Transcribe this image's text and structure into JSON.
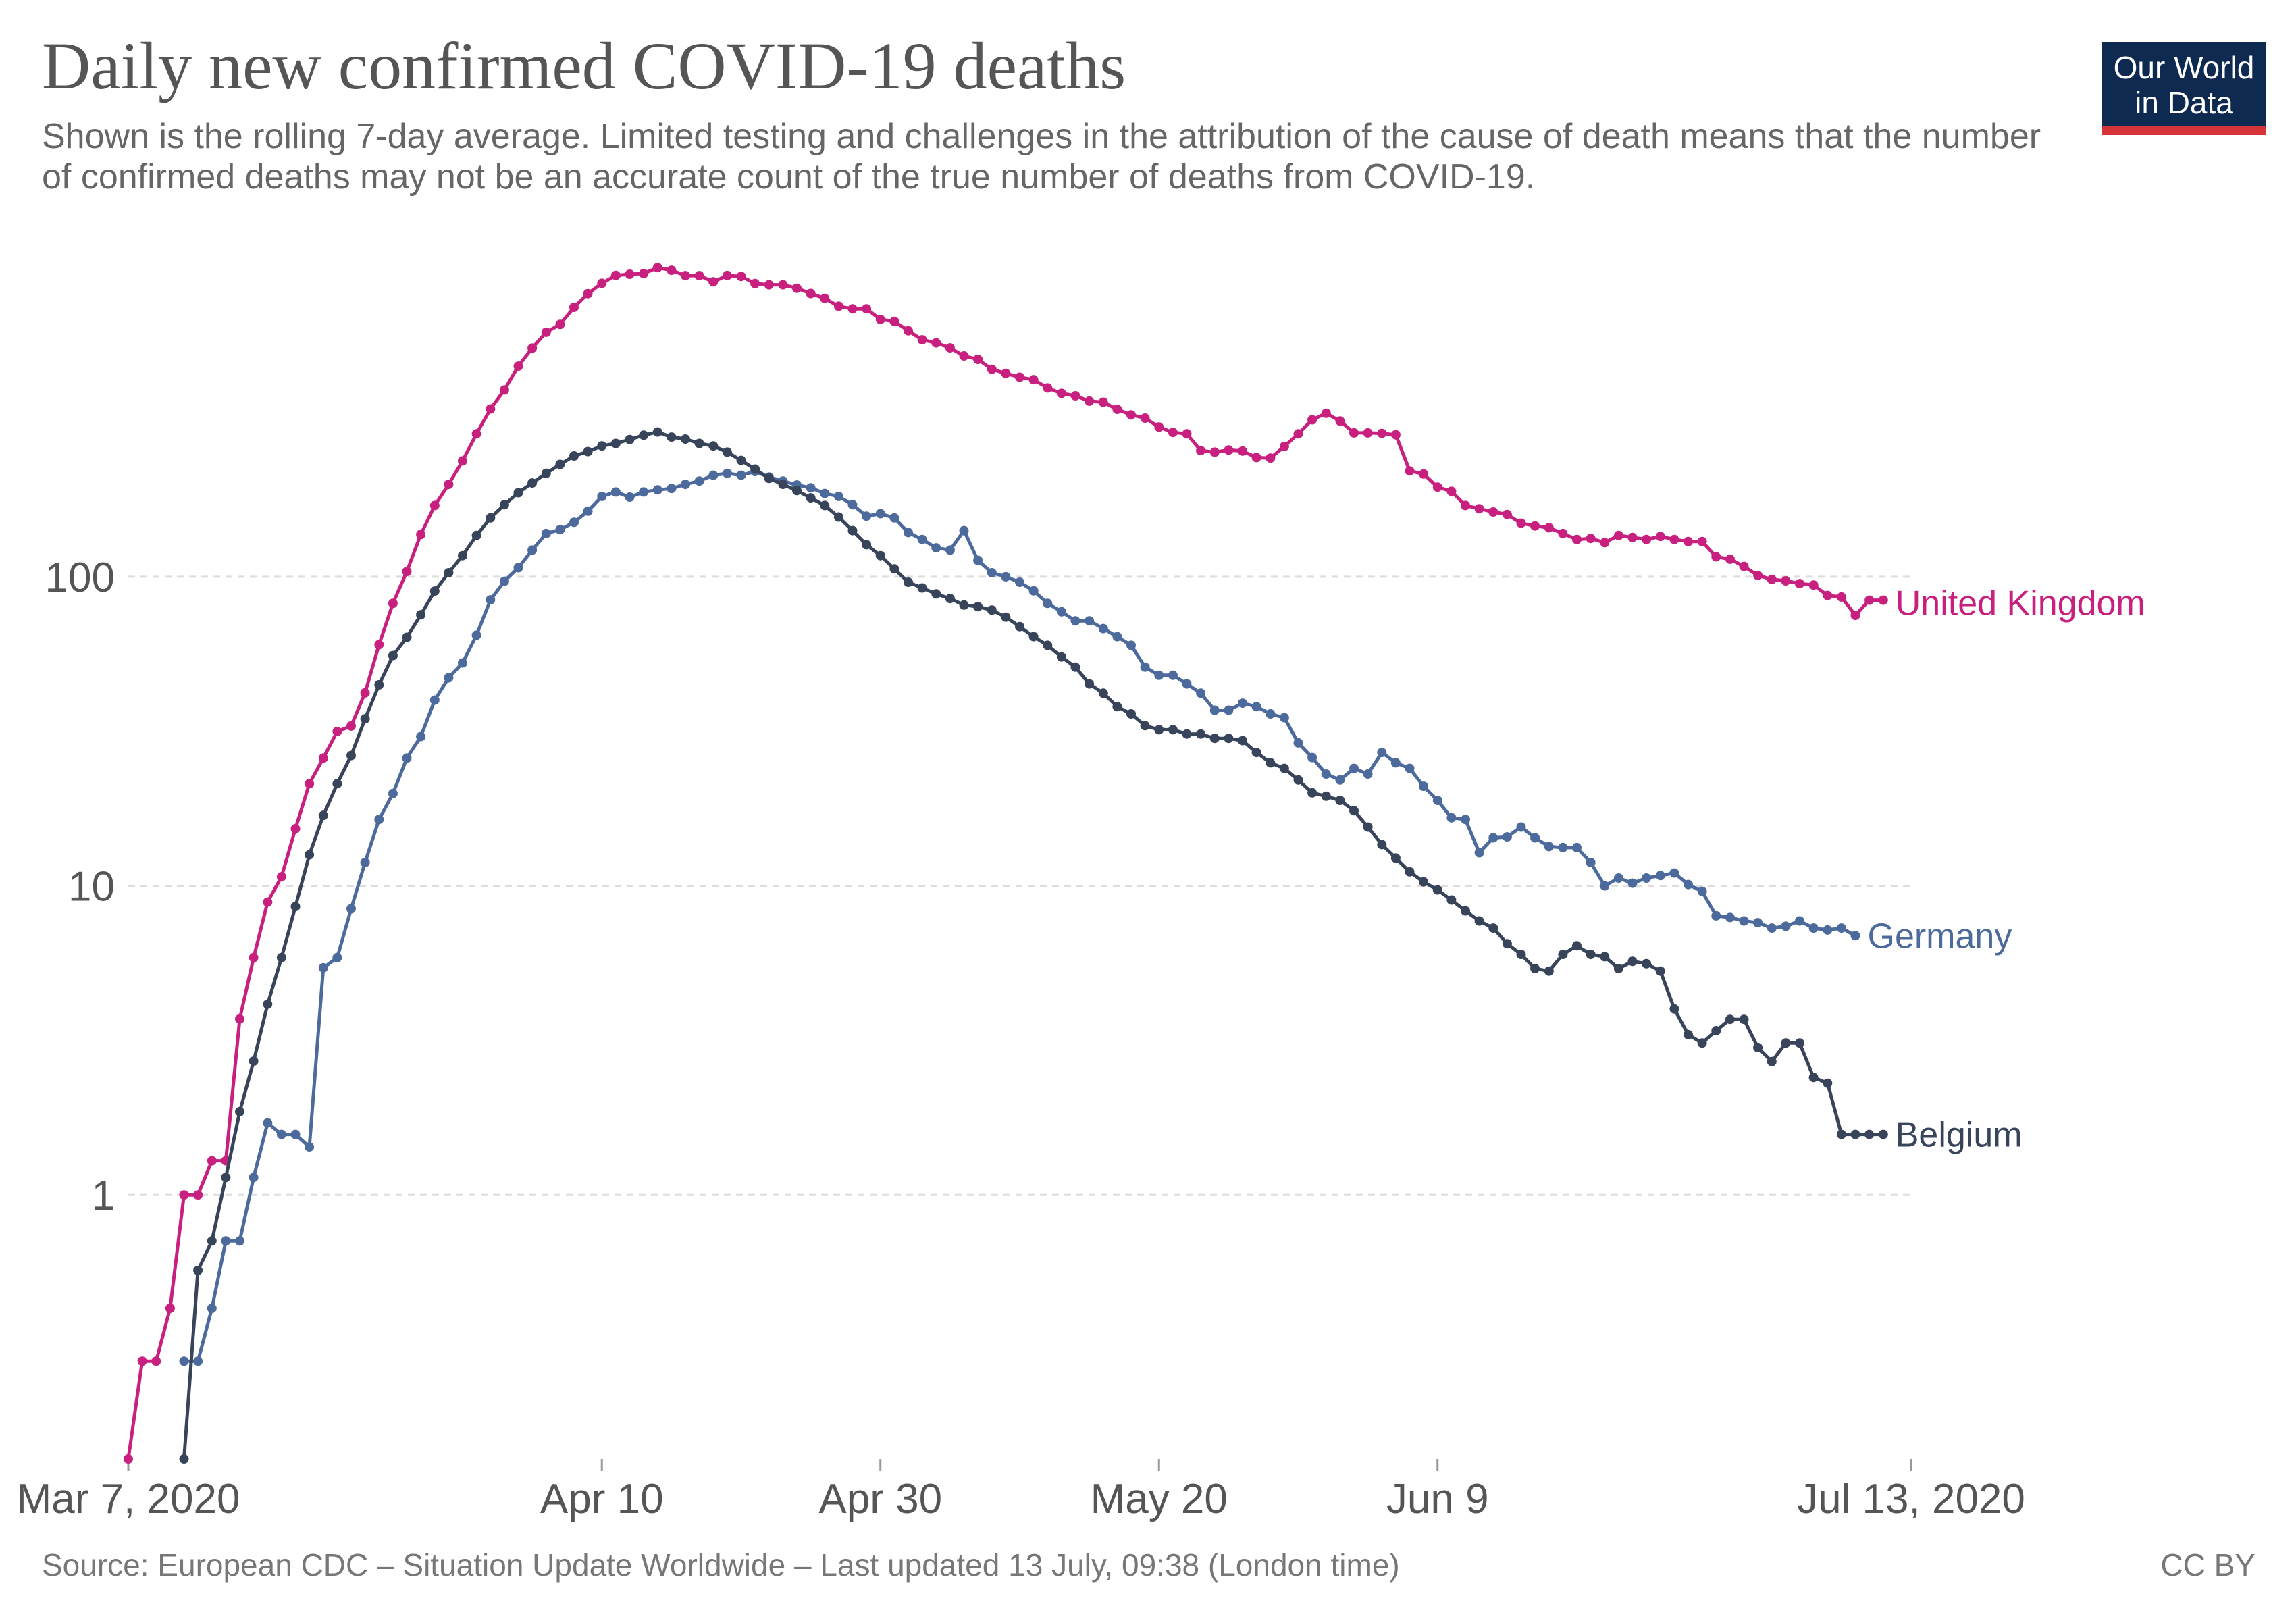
{
  "header": {
    "title": "Daily new confirmed COVID-19 deaths",
    "subtitle": "Shown is the rolling 7-day average. Limited testing and challenges in the attribution of the cause of death means that the number of confirmed deaths may not be an accurate count of the true number of deaths from COVID-19."
  },
  "logo": {
    "line1": "Our World",
    "line2": "in Data",
    "bg_color": "#0e2a50",
    "accent_color": "#d4343a"
  },
  "footer": {
    "source": "Source: European CDC – Situation Update Worldwide – Last updated 13 July, 09:38 (London time)",
    "license": "CC BY"
  },
  "chart_data": {
    "type": "line",
    "x_axis": {
      "type": "date",
      "start": "2020-03-07",
      "end": "2020-07-13",
      "ticks": [
        {
          "date": "2020-03-07",
          "label": "Mar 7, 2020"
        },
        {
          "date": "2020-04-10",
          "label": "Apr 10"
        },
        {
          "date": "2020-04-30",
          "label": "Apr 30"
        },
        {
          "date": "2020-05-20",
          "label": "May 20"
        },
        {
          "date": "2020-06-09",
          "label": "Jun 9"
        },
        {
          "date": "2020-07-13",
          "label": "Jul 13, 2020"
        }
      ]
    },
    "y_axis": {
      "scale": "log",
      "range": [
        0.14,
        1200
      ],
      "ticks": [
        {
          "value": 1,
          "label": "1"
        },
        {
          "value": 10,
          "label": "10"
        },
        {
          "value": 100,
          "label": "100"
        }
      ],
      "gridlines": true
    },
    "legend": "inline-right",
    "series": [
      {
        "name": "United Kingdom",
        "color": "#c8207e",
        "start_date": "2020-03-07",
        "values": [
          0.14,
          0.29,
          0.29,
          0.43,
          1,
          1,
          1.29,
          1.29,
          3.71,
          5.86,
          8.86,
          10.7,
          15.3,
          21.4,
          25.9,
          31.6,
          32.9,
          42.1,
          60.3,
          82,
          104,
          137,
          170,
          199,
          237,
          290,
          349,
          402,
          480,
          549,
          618,
          655,
          744,
          824,
          890,
          944,
          952,
          957,
          1000,
          981,
          942,
          942,
          900,
          943,
          937,
          888,
          880,
          880,
          858,
          825,
          795,
          750,
          736,
          736,
          680,
          670,
          625,
          584,
          571,
          550,
          518,
          505,
          469,
          455,
          442,
          434,
          408,
          392,
          385,
          370,
          367,
          348,
          334,
          326,
          305,
          293,
          290,
          256,
          253,
          257,
          255,
          243,
          242,
          264,
          290,
          322,
          338,
          319,
          292,
          292,
          291,
          288,
          220,
          215,
          195,
          189,
          170,
          166,
          162,
          159,
          149,
          146,
          144,
          138,
          132,
          133,
          129,
          136,
          134,
          132,
          135,
          132,
          130,
          130,
          116,
          114,
          108,
          101,
          98,
          97,
          95,
          94,
          87,
          86,
          75,
          84,
          84
        ]
      },
      {
        "name": "Germany",
        "color": "#4c6a9c",
        "start_date": "2020-03-11",
        "values": [
          0.29,
          0.29,
          0.43,
          0.71,
          0.71,
          1.14,
          1.71,
          1.57,
          1.57,
          1.43,
          5.43,
          5.86,
          8.43,
          11.9,
          16.4,
          19.9,
          25.9,
          30.4,
          39.9,
          47.1,
          52.6,
          64.7,
          84.2,
          96.7,
          107,
          122,
          138,
          142,
          150,
          163,
          182,
          188,
          181,
          188,
          191,
          193,
          199,
          204,
          213,
          216,
          213,
          219,
          210,
          204,
          198,
          194,
          186,
          182,
          171,
          157,
          160,
          155,
          139,
          132,
          124,
          122,
          141,
          113,
          103,
          100,
          96,
          90,
          82,
          77,
          72,
          72,
          68,
          64,
          60,
          51,
          48,
          48,
          45,
          42,
          37,
          37,
          39,
          38,
          36,
          35,
          29,
          26,
          23,
          22,
          24,
          23,
          27,
          25,
          24,
          21,
          18.9,
          16.6,
          16.4,
          12.8,
          14.3,
          14.4,
          15.5,
          14.3,
          13.4,
          13.3,
          13.3,
          11.9,
          10,
          10.6,
          10.2,
          10.6,
          10.8,
          11,
          10.1,
          9.6,
          8,
          7.9,
          7.7,
          7.6,
          7.3,
          7.4,
          7.7,
          7.3,
          7.2,
          7.3,
          6.9
        ]
      },
      {
        "name": "Belgium",
        "color": "#37445a",
        "start_date": "2020-03-11",
        "values": [
          0.14,
          0.57,
          0.71,
          1.14,
          1.86,
          2.71,
          4.14,
          5.86,
          8.57,
          12.6,
          16.9,
          21.4,
          26.4,
          34.7,
          44.7,
          55.6,
          63.7,
          75.3,
          89.9,
          103,
          117,
          136,
          155,
          171,
          187,
          201,
          216,
          231,
          246,
          254,
          265,
          270,
          278,
          287,
          294,
          283,
          279,
          270,
          265,
          253,
          238,
          223,
          208,
          199,
          190,
          180,
          170,
          156,
          141,
          127,
          117,
          106,
          96,
          92,
          88,
          85,
          81,
          80,
          78,
          74,
          69,
          64,
          60,
          55,
          51,
          45,
          42,
          38,
          36,
          33,
          32,
          32,
          31,
          31,
          30,
          30,
          29.5,
          27,
          25,
          24,
          22,
          20,
          19.5,
          18.9,
          17.5,
          15.5,
          13.6,
          12.3,
          11.1,
          10.3,
          9.7,
          9,
          8.3,
          7.7,
          7.3,
          6.5,
          6,
          5.4,
          5.3,
          6,
          6.4,
          6,
          5.9,
          5.4,
          5.7,
          5.6,
          5.3,
          4,
          3.3,
          3.1,
          3.4,
          3.7,
          3.7,
          3,
          2.7,
          3.1,
          3.1,
          2.4,
          2.3,
          1.57,
          1.57,
          1.57,
          1.57
        ]
      }
    ]
  }
}
